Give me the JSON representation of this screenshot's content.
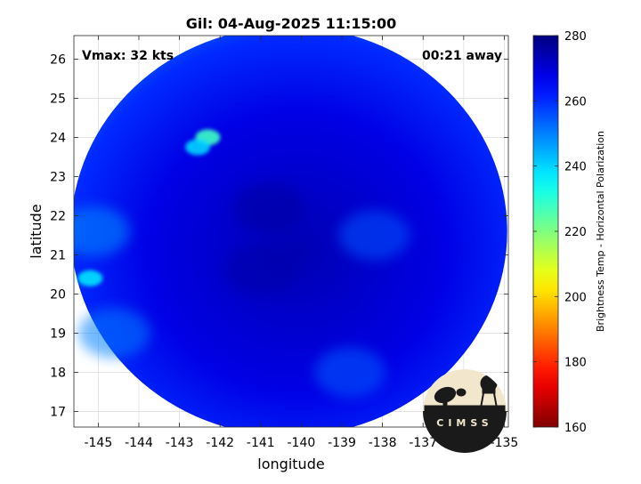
{
  "chart_data": {
    "type": "heatmap",
    "title": "Gil: 04-Aug-2025 11:15:00",
    "annotations": {
      "top_left": "Vmax: 32 kts",
      "top_right": "00:21 away"
    },
    "xlabel": "longitude",
    "ylabel": "latitude",
    "xlim": [
      -145.6,
      -134.9
    ],
    "ylim": [
      16.6,
      26.6
    ],
    "x_ticks": [
      -145,
      -144,
      -143,
      -142,
      -141,
      -140,
      -139,
      -138,
      -137,
      -136,
      -135
    ],
    "y_ticks": [
      17,
      18,
      19,
      20,
      21,
      22,
      23,
      24,
      25,
      26
    ],
    "grid": true,
    "colorbar": {
      "label": "Brightness Temp - Horizontal Polarization",
      "range": [
        160,
        280
      ],
      "ticks": [
        160,
        180,
        200,
        220,
        240,
        260,
        280
      ],
      "colormap": "jet"
    },
    "swath": {
      "center_lon": -140.3,
      "center_lat": 21.6,
      "background_temp": 268
    },
    "features": [
      {
        "lon": -142.3,
        "lat": 24.0,
        "temp": 228
      },
      {
        "lon": -142.55,
        "lat": 23.75,
        "temp": 240
      },
      {
        "lon": -145.2,
        "lat": 20.4,
        "temp": 238
      },
      {
        "lon": -145.1,
        "lat": 21.6,
        "temp": 248
      },
      {
        "lon": -144.6,
        "lat": 19.0,
        "temp": 250
      },
      {
        "lon": -138.2,
        "lat": 21.5,
        "temp": 255
      },
      {
        "lon": -138.8,
        "lat": 18.0,
        "temp": 254
      },
      {
        "lon": -141.0,
        "lat": 20.6,
        "temp": 275
      },
      {
        "lon": -140.8,
        "lat": 22.2,
        "temp": 276
      }
    ],
    "logo_text": "CIMSS",
    "logo_colors": {
      "sky": "#f2e6cc",
      "ground": "#1a1a1a"
    }
  }
}
